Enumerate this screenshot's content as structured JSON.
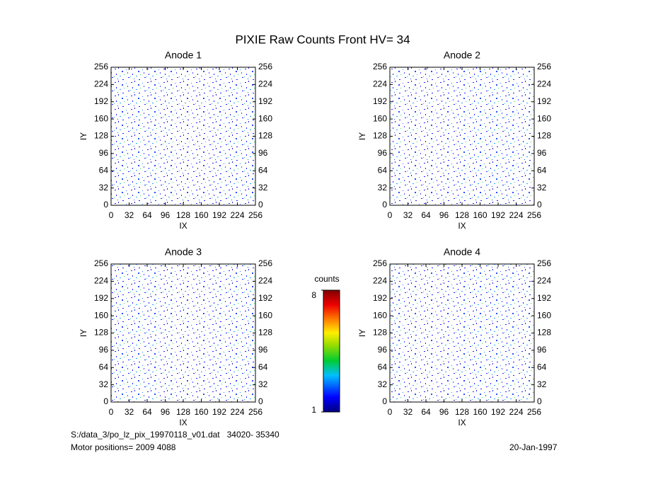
{
  "title": "PIXIE Raw Counts Front HV= 34",
  "chart_data": [
    {
      "type": "heatmap",
      "title": "Anode 1",
      "xlabel": "IX",
      "ylabel": "IY",
      "xlim": [
        0,
        256
      ],
      "ylim": [
        0,
        256
      ],
      "xticks": [
        0,
        32,
        64,
        96,
        128,
        160,
        192,
        224,
        256
      ],
      "yticks": [
        0,
        32,
        64,
        96,
        128,
        160,
        192,
        224,
        256
      ]
    },
    {
      "type": "heatmap",
      "title": "Anode 2",
      "xlabel": "IX",
      "ylabel": "IY",
      "xlim": [
        0,
        256
      ],
      "ylim": [
        0,
        256
      ],
      "xticks": [
        0,
        32,
        64,
        96,
        128,
        160,
        192,
        224,
        256
      ],
      "yticks": [
        0,
        32,
        64,
        96,
        128,
        160,
        192,
        224,
        256
      ]
    },
    {
      "type": "heatmap",
      "title": "Anode 3",
      "xlabel": "IX",
      "ylabel": "IY",
      "xlim": [
        0,
        256
      ],
      "ylim": [
        0,
        256
      ],
      "xticks": [
        0,
        32,
        64,
        96,
        128,
        160,
        192,
        224,
        256
      ],
      "yticks": [
        0,
        32,
        64,
        96,
        128,
        160,
        192,
        224,
        256
      ]
    },
    {
      "type": "heatmap",
      "title": "Anode 4",
      "xlabel": "IX",
      "ylabel": "IY",
      "xlim": [
        0,
        256
      ],
      "ylim": [
        0,
        256
      ],
      "xticks": [
        0,
        32,
        64,
        96,
        128,
        160,
        192,
        224,
        256
      ],
      "yticks": [
        0,
        32,
        64,
        96,
        128,
        160,
        192,
        224,
        256
      ]
    }
  ],
  "colorbar": {
    "label": "counts",
    "lim": [
      1,
      8
    ],
    "ticks": [
      1,
      8
    ]
  },
  "footer": {
    "file": "S:/data_3/po_lz_pix_19970118_v01.dat   34020- 35340",
    "motor": "Motor positions= 2009 4088",
    "date": "20-Jan-1997"
  }
}
